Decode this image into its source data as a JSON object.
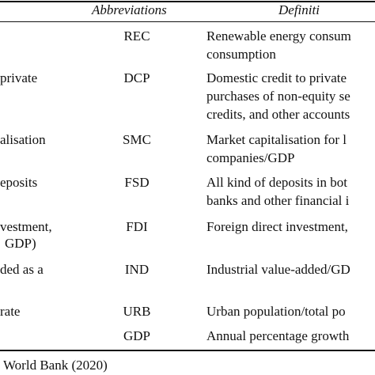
{
  "table": {
    "header": [
      "Abbreviations",
      "Definiti"
    ],
    "rows": [
      {
        "variable": [],
        "abbreviation": "REC",
        "definition": [
          "Renewable energy consum",
          "consumption"
        ]
      },
      {
        "variable": [
          "private"
        ],
        "abbreviation": "DCP",
        "definition": [
          "Domestic credit to private",
          "purchases of non-equity se",
          "credits, and other accounts"
        ]
      },
      {
        "variable": [
          "alisation"
        ],
        "abbreviation": "SMC",
        "definition": [
          "Market capitalisation for l",
          "companies/GDP"
        ]
      },
      {
        "variable": [
          "eposits"
        ],
        "abbreviation": "FSD",
        "definition": [
          "All kind of deposits in bot",
          "banks and other financial i"
        ]
      },
      {
        "variable": [
          "vestment,",
          "GDP)"
        ],
        "abbreviation": "FDI",
        "definition": [
          "Foreign direct investment,"
        ]
      },
      {
        "variable": [
          "ded as a"
        ],
        "abbreviation": "IND",
        "definition": [
          "Industrial value-added/GD"
        ]
      },
      {
        "variable": [
          "rate"
        ],
        "abbreviation": "URB",
        "definition": [
          "Urban population/total po"
        ]
      },
      {
        "variable": [],
        "abbreviation": "GDP",
        "definition": [
          "Annual percentage growth"
        ]
      }
    ],
    "footer": "World Bank (2020)"
  }
}
